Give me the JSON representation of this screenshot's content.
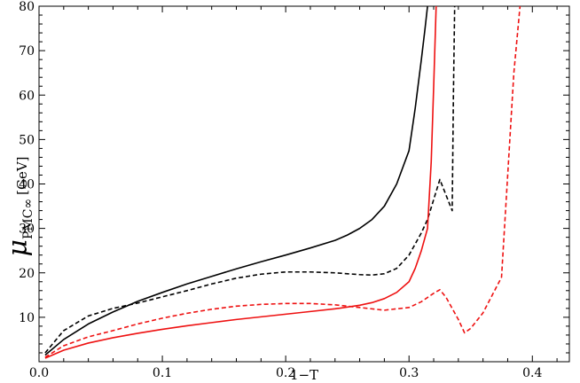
{
  "chart_data": {
    "type": "line",
    "title": "",
    "xlabel": "1−T",
    "ylabel": {
      "symbol": "μ",
      "subscript": "PMC∞",
      "unit": "[GeV]"
    },
    "xlim": [
      0,
      0.43
    ],
    "ylim": [
      0,
      80
    ],
    "xticks": [
      0.0,
      0.1,
      0.2,
      0.3,
      0.4
    ],
    "xtick_labels": [
      "0.0",
      "0.1",
      "0.2",
      "0.3",
      "0.4"
    ],
    "yticks": [
      10,
      20,
      30,
      40,
      50,
      60,
      70,
      80
    ],
    "ytick_labels": [
      "10",
      "20",
      "30",
      "40",
      "50",
      "60",
      "70",
      "80"
    ],
    "grid": false,
    "legend": "none",
    "series": [
      {
        "color": "#000000",
        "dash": "solid",
        "x": [
          0.005,
          0.02,
          0.04,
          0.06,
          0.08,
          0.1,
          0.12,
          0.14,
          0.16,
          0.18,
          0.2,
          0.22,
          0.24,
          0.25,
          0.26,
          0.27,
          0.28,
          0.29,
          0.3,
          0.305,
          0.31,
          0.313,
          0.315
        ],
        "y": [
          1.5,
          5.0,
          8.5,
          11.2,
          13.6,
          15.6,
          17.5,
          19.2,
          20.9,
          22.5,
          24.0,
          25.6,
          27.3,
          28.5,
          30.0,
          32.0,
          35.0,
          40.0,
          47.5,
          57.0,
          68.0,
          75.0,
          80.0
        ]
      },
      {
        "color": "#000000",
        "dash": "dashed",
        "x": [
          0.005,
          0.02,
          0.04,
          0.06,
          0.08,
          0.1,
          0.12,
          0.14,
          0.16,
          0.18,
          0.2,
          0.22,
          0.24,
          0.26,
          0.27,
          0.28,
          0.29,
          0.3,
          0.31,
          0.315,
          0.32,
          0.325,
          0.33,
          0.335,
          0.336,
          0.337
        ],
        "y": [
          2.0,
          7.0,
          10.3,
          12.0,
          13.2,
          14.6,
          16.0,
          17.5,
          18.8,
          19.7,
          20.2,
          20.2,
          20.0,
          19.6,
          19.5,
          19.8,
          21.0,
          24.0,
          29.0,
          32.0,
          36.5,
          41.0,
          37.5,
          34.0,
          60.0,
          80.0
        ]
      },
      {
        "color": "#ee1111",
        "dash": "solid",
        "x": [
          0.005,
          0.02,
          0.04,
          0.06,
          0.08,
          0.1,
          0.12,
          0.14,
          0.16,
          0.18,
          0.2,
          0.22,
          0.24,
          0.26,
          0.27,
          0.28,
          0.29,
          0.3,
          0.305,
          0.31,
          0.315,
          0.318,
          0.32,
          0.322
        ],
        "y": [
          0.8,
          2.6,
          4.2,
          5.4,
          6.4,
          7.3,
          8.1,
          8.8,
          9.5,
          10.1,
          10.7,
          11.3,
          11.9,
          12.7,
          13.3,
          14.2,
          15.6,
          18.0,
          21.0,
          25.0,
          30.0,
          45.0,
          62.0,
          80.0
        ]
      },
      {
        "color": "#ee1111",
        "dash": "dashed",
        "x": [
          0.005,
          0.02,
          0.04,
          0.06,
          0.08,
          0.1,
          0.12,
          0.14,
          0.16,
          0.18,
          0.2,
          0.22,
          0.24,
          0.26,
          0.28,
          0.3,
          0.31,
          0.32,
          0.325,
          0.33,
          0.335,
          0.34,
          0.345,
          0.35,
          0.36,
          0.375,
          0.385,
          0.39
        ],
        "y": [
          1.0,
          3.6,
          5.6,
          7.0,
          8.5,
          9.8,
          10.9,
          11.8,
          12.5,
          12.9,
          13.1,
          13.1,
          12.8,
          12.2,
          11.6,
          12.2,
          13.5,
          15.4,
          16.2,
          14.5,
          12.0,
          9.5,
          6.5,
          7.5,
          11.0,
          19.0,
          65.0,
          80.0
        ]
      }
    ]
  }
}
